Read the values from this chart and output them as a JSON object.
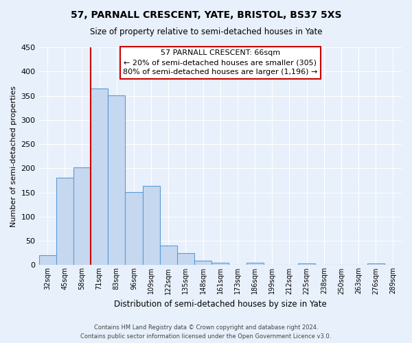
{
  "title": "57, PARNALL CRESCENT, YATE, BRISTOL, BS37 5XS",
  "subtitle": "Size of property relative to semi-detached houses in Yate",
  "xlabel": "Distribution of semi-detached houses by size in Yate",
  "ylabel": "Number of semi-detached properties",
  "categories": [
    "32sqm",
    "45sqm",
    "58sqm",
    "71sqm",
    "83sqm",
    "96sqm",
    "109sqm",
    "122sqm",
    "135sqm",
    "148sqm",
    "161sqm",
    "173sqm",
    "186sqm",
    "199sqm",
    "212sqm",
    "225sqm",
    "238sqm",
    "250sqm",
    "263sqm",
    "276sqm",
    "289sqm"
  ],
  "values": [
    21,
    181,
    202,
    365,
    351,
    151,
    164,
    40,
    25,
    9,
    5,
    0,
    5,
    0,
    0,
    4,
    0,
    0,
    0,
    3,
    0
  ],
  "bar_color": "#c5d8f0",
  "bar_edge_color": "#5b9bd5",
  "annotation_text_line1": "57 PARNALL CRESCENT: 66sqm",
  "annotation_text_line2": "← 20% of semi-detached houses are smaller (305)",
  "annotation_text_line3": "80% of semi-detached houses are larger (1,196) →",
  "ylim": [
    0,
    450
  ],
  "yticks": [
    0,
    50,
    100,
    150,
    200,
    250,
    300,
    350,
    400,
    450
  ],
  "background_color": "#e8f0fb",
  "axes_background_color": "#e8f0fb",
  "grid_color": "#ffffff",
  "vline_color": "#cc0000",
  "box_edge_color": "#cc0000",
  "footer_line1": "Contains HM Land Registry data © Crown copyright and database right 2024.",
  "footer_line2": "Contains public sector information licensed under the Open Government Licence v3.0."
}
